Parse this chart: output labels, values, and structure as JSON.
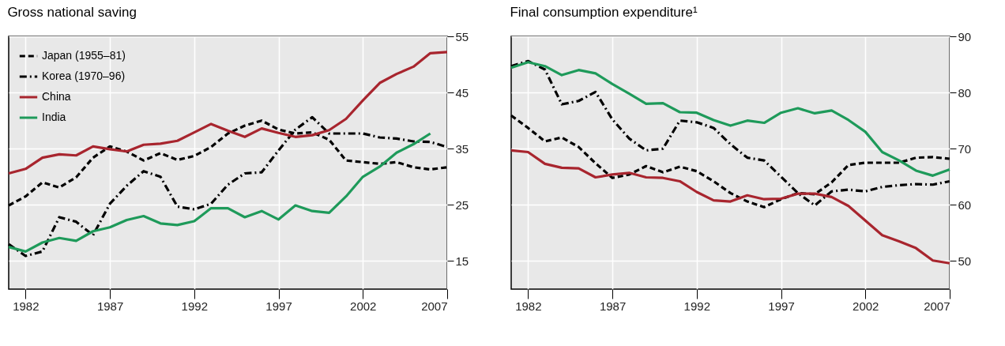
{
  "chart_data": [
    {
      "type": "line",
      "title": "Gross national saving",
      "x": [
        1981,
        1982,
        1983,
        1984,
        1985,
        1986,
        1987,
        1988,
        1989,
        1990,
        1991,
        1992,
        1993,
        1994,
        1995,
        1996,
        1997,
        1998,
        1999,
        2000,
        2001,
        2002,
        2003,
        2004,
        2005,
        2006,
        2007
      ],
      "xlim": [
        1981,
        2007
      ],
      "xticks": [
        1982,
        1987,
        1992,
        1997,
        2002,
        2007
      ],
      "ylim": [
        10,
        55
      ],
      "yticks": [
        15,
        25,
        35,
        45,
        55
      ],
      "grid": true,
      "legend": "top left",
      "series": [
        {
          "name": "Japan (1955–81)",
          "color": "#000000",
          "line_style": "dashed",
          "values": [
            24.9,
            26.5,
            29.0,
            28.1,
            29.9,
            33.4,
            35.4,
            34.5,
            32.9,
            34.2,
            33.0,
            33.7,
            35.3,
            37.7,
            39.1,
            40.0,
            38.4,
            37.7,
            37.9,
            36.6,
            32.9,
            32.6,
            32.3,
            32.6,
            31.7,
            31.3,
            31.7
          ]
        },
        {
          "name": "Korea (1970–96)",
          "color": "#000000",
          "line_style": "dashdot",
          "values": [
            18.0,
            15.9,
            16.7,
            22.8,
            22.0,
            19.6,
            25.2,
            28.4,
            31.0,
            30.0,
            24.7,
            24.2,
            25.2,
            28.6,
            30.6,
            30.8,
            34.7,
            38.4,
            40.6,
            37.7,
            37.7,
            37.7,
            37.0,
            36.8,
            36.3,
            36.2,
            35.3
          ]
        },
        {
          "name": "China",
          "color": "#a8252e",
          "line_style": "solid",
          "values": [
            30.6,
            31.4,
            33.4,
            34.0,
            33.8,
            35.4,
            34.9,
            34.5,
            35.7,
            35.9,
            36.4,
            37.9,
            39.4,
            38.2,
            37.1,
            38.6,
            37.8,
            37.1,
            37.4,
            38.3,
            40.3,
            43.6,
            46.7,
            48.3,
            49.6,
            52.0,
            52.2
          ]
        },
        {
          "name": "India",
          "color": "#1e9a5a",
          "line_style": "solid",
          "values": [
            17.5,
            16.7,
            18.3,
            19.1,
            18.6,
            20.3,
            21.0,
            22.3,
            23.0,
            21.7,
            21.4,
            22.1,
            24.4,
            24.4,
            22.8,
            23.9,
            22.4,
            24.9,
            23.9,
            23.6,
            26.5,
            30.0,
            31.8,
            34.3,
            35.8,
            37.7,
            null
          ]
        }
      ]
    },
    {
      "type": "line",
      "title": "Final consumption expenditure¹",
      "x": [
        1981,
        1982,
        1983,
        1984,
        1985,
        1986,
        1987,
        1988,
        1989,
        1990,
        1991,
        1992,
        1993,
        1994,
        1995,
        1996,
        1997,
        1998,
        1999,
        2000,
        2001,
        2002,
        2003,
        2004,
        2005,
        2006,
        2007
      ],
      "xlim": [
        1981,
        2007
      ],
      "xticks": [
        1982,
        1987,
        1992,
        1997,
        2002,
        2007
      ],
      "ylim": [
        45,
        90
      ],
      "yticks": [
        50,
        60,
        70,
        80,
        90
      ],
      "grid": true,
      "series": [
        {
          "color": "#000000",
          "line_style": "dashed",
          "values": [
            75.9,
            73.7,
            71.3,
            72.0,
            70.3,
            67.4,
            64.8,
            65.4,
            66.9,
            65.8,
            66.8,
            66.0,
            64.2,
            62.1,
            60.6,
            59.6,
            61.0,
            62.1,
            61.9,
            64.0,
            67.1,
            67.5,
            67.5,
            67.5,
            68.4,
            68.5,
            68.2
          ]
        },
        {
          "color": "#000000",
          "line_style": "dashdot",
          "values": [
            84.7,
            85.6,
            84.1,
            77.9,
            78.5,
            80.1,
            75.2,
            71.8,
            69.7,
            70.0,
            75.0,
            74.7,
            73.7,
            70.8,
            68.4,
            67.9,
            65.0,
            62.1,
            59.9,
            62.4,
            62.7,
            62.4,
            63.2,
            63.5,
            63.7,
            63.6,
            64.2
          ]
        },
        {
          "color": "#a8252e",
          "line_style": "solid",
          "values": [
            69.7,
            69.4,
            67.3,
            66.6,
            66.5,
            64.9,
            65.4,
            65.7,
            64.9,
            64.8,
            64.2,
            62.3,
            60.8,
            60.6,
            61.7,
            61.0,
            61.1,
            62.0,
            62.0,
            61.4,
            59.8,
            57.2,
            54.6,
            53.5,
            52.3,
            50.1,
            49.6
          ]
        },
        {
          "color": "#1e9a5a",
          "line_style": "solid",
          "values": [
            84.4,
            85.4,
            84.7,
            83.1,
            84.0,
            83.4,
            81.5,
            79.8,
            78.0,
            78.1,
            76.5,
            76.4,
            75.1,
            74.1,
            75.0,
            74.6,
            76.4,
            77.2,
            76.3,
            76.8,
            75.1,
            73.0,
            69.4,
            67.9,
            66.1,
            65.2,
            66.3
          ]
        }
      ]
    }
  ]
}
